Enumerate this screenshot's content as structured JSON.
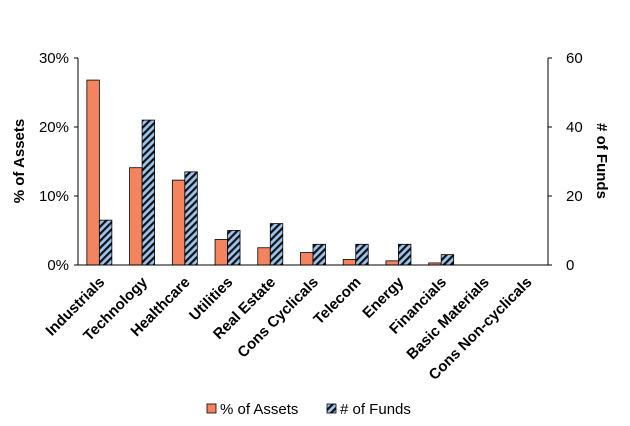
{
  "chart_data": {
    "type": "bar",
    "categories": [
      "Industrials",
      "Technology",
      "Healthcare",
      "Utilities",
      "Real Estate",
      "Cons Cyclicals",
      "Telecom",
      "Energy",
      "Financials",
      "Basic Materials",
      "Cons Non-cyclicals"
    ],
    "series": [
      {
        "name": "% of Assets",
        "axis": "left",
        "color": "#f4845f",
        "pattern": "solid",
        "values": [
          0.268,
          0.141,
          0.123,
          0.037,
          0.025,
          0.018,
          0.008,
          0.006,
          0.003,
          0,
          0
        ]
      },
      {
        "name": "# of Funds",
        "axis": "right",
        "color": "#8fb8e8",
        "pattern": "diagonal-stripes-black",
        "values": [
          13,
          42,
          27,
          10,
          12,
          6,
          6,
          6,
          3,
          0,
          0
        ]
      }
    ],
    "ylabel": "% of Assets",
    "y2label": "# of Funds",
    "ylim": [
      0,
      0.3
    ],
    "y2lim": [
      0,
      60
    ],
    "yticks": [
      "0%",
      "10%",
      "20%",
      "30%"
    ],
    "y2ticks": [
      "0",
      "20",
      "40",
      "60"
    ],
    "grid": false,
    "legend": "bottom"
  }
}
